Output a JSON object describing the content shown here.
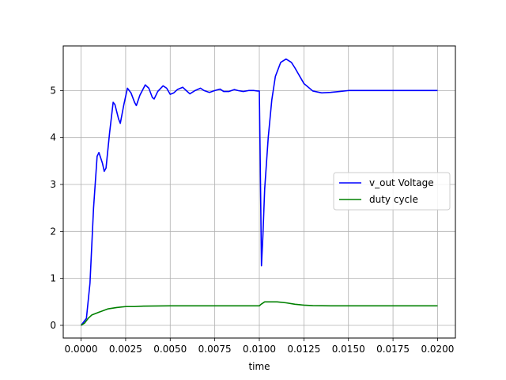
{
  "chart_data": {
    "type": "line",
    "title": "",
    "xlabel": "time",
    "ylabel": "",
    "xlim": [
      -0.001,
      0.021
    ],
    "ylim": [
      -0.27,
      5.95
    ],
    "xticks": [
      0.0,
      0.0025,
      0.005,
      0.0075,
      0.01,
      0.0125,
      0.015,
      0.0175,
      0.02
    ],
    "xtick_labels": [
      "0.0000",
      "0.0025",
      "0.0050",
      "0.0075",
      "0.0100",
      "0.0125",
      "0.0150",
      "0.0175",
      "0.0200"
    ],
    "yticks": [
      0,
      1,
      2,
      3,
      4,
      5
    ],
    "ytick_labels": [
      "0",
      "1",
      "2",
      "3",
      "4",
      "5"
    ],
    "grid": true,
    "legend_position": "right",
    "series": [
      {
        "name": "v_out Voltage",
        "color": "#0000ff",
        "points": [
          [
            0.0,
            0.0
          ],
          [
            0.0003,
            0.15
          ],
          [
            0.0005,
            0.9
          ],
          [
            0.0007,
            2.5
          ],
          [
            0.0009,
            3.6
          ],
          [
            0.001,
            3.68
          ],
          [
            0.0012,
            3.45
          ],
          [
            0.0013,
            3.28
          ],
          [
            0.0014,
            3.35
          ],
          [
            0.0016,
            4.1
          ],
          [
            0.0018,
            4.75
          ],
          [
            0.0019,
            4.7
          ],
          [
            0.0021,
            4.4
          ],
          [
            0.0022,
            4.3
          ],
          [
            0.0024,
            4.7
          ],
          [
            0.0026,
            5.05
          ],
          [
            0.0028,
            4.95
          ],
          [
            0.003,
            4.75
          ],
          [
            0.0031,
            4.68
          ],
          [
            0.0033,
            4.9
          ],
          [
            0.0036,
            5.12
          ],
          [
            0.0038,
            5.05
          ],
          [
            0.004,
            4.85
          ],
          [
            0.0041,
            4.82
          ],
          [
            0.0043,
            4.98
          ],
          [
            0.0046,
            5.1
          ],
          [
            0.0048,
            5.05
          ],
          [
            0.005,
            4.92
          ],
          [
            0.0052,
            4.95
          ],
          [
            0.0054,
            5.02
          ],
          [
            0.0057,
            5.07
          ],
          [
            0.0059,
            5.0
          ],
          [
            0.0061,
            4.93
          ],
          [
            0.0064,
            5.0
          ],
          [
            0.0067,
            5.05
          ],
          [
            0.0069,
            5.0
          ],
          [
            0.0072,
            4.96
          ],
          [
            0.0075,
            5.0
          ],
          [
            0.0078,
            5.03
          ],
          [
            0.008,
            4.98
          ],
          [
            0.0083,
            4.98
          ],
          [
            0.0086,
            5.02
          ],
          [
            0.0088,
            5.0
          ],
          [
            0.0091,
            4.98
          ],
          [
            0.0094,
            5.0
          ],
          [
            0.0097,
            5.0
          ],
          [
            0.0099,
            4.99
          ],
          [
            0.01,
            4.99
          ],
          [
            0.01005,
            3.5
          ],
          [
            0.01012,
            1.27
          ],
          [
            0.0102,
            1.9
          ],
          [
            0.0103,
            2.9
          ],
          [
            0.0105,
            4.0
          ],
          [
            0.0107,
            4.8
          ],
          [
            0.0109,
            5.3
          ],
          [
            0.0112,
            5.6
          ],
          [
            0.0115,
            5.67
          ],
          [
            0.0118,
            5.6
          ],
          [
            0.012,
            5.48
          ],
          [
            0.0125,
            5.15
          ],
          [
            0.013,
            4.99
          ],
          [
            0.0135,
            4.95
          ],
          [
            0.014,
            4.96
          ],
          [
            0.0145,
            4.98
          ],
          [
            0.015,
            5.0
          ],
          [
            0.016,
            5.0
          ],
          [
            0.018,
            5.0
          ],
          [
            0.02,
            5.0
          ]
        ]
      },
      {
        "name": "duty cycle",
        "color": "#008000",
        "points": [
          [
            0.0,
            0.0
          ],
          [
            0.0002,
            0.05
          ],
          [
            0.0004,
            0.15
          ],
          [
            0.0006,
            0.22
          ],
          [
            0.001,
            0.28
          ],
          [
            0.0015,
            0.35
          ],
          [
            0.002,
            0.38
          ],
          [
            0.0025,
            0.4
          ],
          [
            0.003,
            0.4
          ],
          [
            0.0035,
            0.41
          ],
          [
            0.005,
            0.415
          ],
          [
            0.0075,
            0.415
          ],
          [
            0.01,
            0.415
          ],
          [
            0.0101,
            0.45
          ],
          [
            0.0103,
            0.5
          ],
          [
            0.011,
            0.5
          ],
          [
            0.0115,
            0.48
          ],
          [
            0.012,
            0.45
          ],
          [
            0.0125,
            0.43
          ],
          [
            0.013,
            0.42
          ],
          [
            0.014,
            0.415
          ],
          [
            0.02,
            0.415
          ]
        ]
      }
    ]
  }
}
